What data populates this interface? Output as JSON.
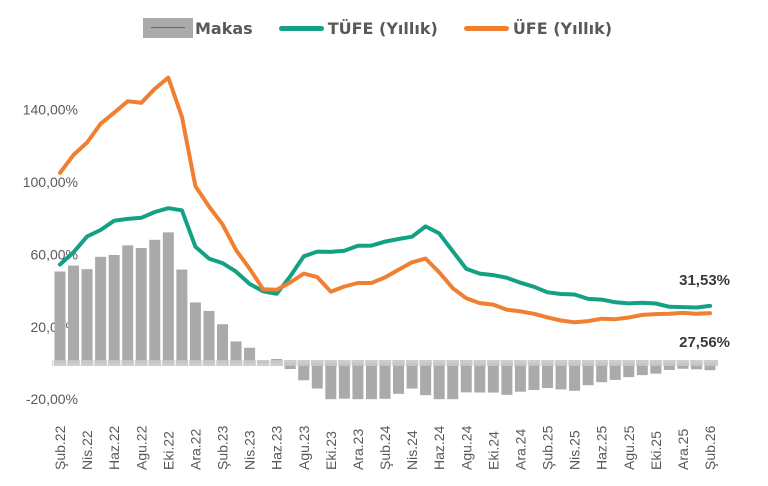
{
  "chart_data": {
    "type": "bar+line",
    "title": "",
    "xlabel": "",
    "ylabel": "",
    "period": {
      "start": "Şub.22",
      "end": "Şub.26",
      "frequency": "monthly"
    },
    "x_tick_labels": [
      "Şub.22",
      "Nis.22",
      "Haz.22",
      "Agu.22",
      "Eki.22",
      "Ara.22",
      "Şub.23",
      "Nis.23",
      "Haz.23",
      "Agu.23",
      "Eki.23",
      "Ara.23",
      "Şub.24",
      "Nis.24",
      "Haz.24",
      "Agu.24",
      "Eki.24",
      "Ara.24",
      "Şub.25",
      "Nis.25",
      "Haz.25",
      "Agu.25",
      "Eki.25",
      "Ara.25",
      "Şub.26"
    ],
    "y_tick_labels": [
      "140,00%",
      "100,00%",
      "60,00%",
      "20,00%",
      "-20,00%"
    ],
    "y_ticks": [
      140,
      100,
      60,
      20,
      -20
    ],
    "ylim": [
      -20,
      160
    ],
    "grid": false,
    "legend_position": "top",
    "series": [
      {
        "name": "Makas",
        "type": "bar",
        "color": "#aaaaaa",
        "values": [
          50.57,
          53.83,
          51.85,
          58.66,
          59.69,
          65.01,
          63.54,
          68.05,
          72.18,
          51.63,
          33.45,
          28.78,
          21.43,
          11.92,
          8.43,
          1.17,
          2.21,
          -3.33,
          -9.53,
          -14.09,
          -21.97,
          -19.73,
          -20.55,
          -20.66,
          -19.78,
          -17.03,
          -14.14,
          -17.77,
          -21.51,
          -20.41,
          -16.22,
          -16.29,
          -16.34,
          -17.62,
          -15.86,
          -14.92,
          -13.84,
          -14.6,
          -15.36,
          -12.28,
          -10.6,
          -9.33,
          -7.79,
          -6.7,
          -5.87,
          -3.84,
          -3.19,
          -3.48,
          -3.97
        ]
      },
      {
        "name": "TÜFE (Yıllık)",
        "type": "line",
        "color": "#14a085",
        "values": [
          54.44,
          61.14,
          69.97,
          73.5,
          78.62,
          79.6,
          80.21,
          83.45,
          85.51,
          84.39,
          64.27,
          57.68,
          55.18,
          50.51,
          43.68,
          39.59,
          38.21,
          47.83,
          58.94,
          61.53,
          61.36,
          61.98,
          64.77,
          64.86,
          67.07,
          68.5,
          69.8,
          75.45,
          71.6,
          61.78,
          51.97,
          49.38,
          48.58,
          47.09,
          44.38,
          42.12,
          39.05,
          38.1,
          37.86,
          35.41,
          35.05,
          33.52,
          32.95,
          33.29,
          32.87,
          31.07,
          30.89,
          30.65,
          31.53
        ],
        "end_label": "31,53%"
      },
      {
        "name": "ÜFE (Yıllık)",
        "type": "line",
        "color": "#f07f32",
        "values": [
          105.01,
          114.97,
          121.82,
          132.16,
          138.31,
          144.61,
          143.75,
          151.5,
          157.69,
          136.02,
          97.72,
          86.46,
          76.61,
          62.43,
          52.11,
          40.76,
          40.42,
          44.5,
          49.41,
          47.44,
          39.39,
          42.25,
          44.22,
          44.2,
          47.29,
          51.47,
          55.66,
          57.68,
          50.09,
          41.37,
          35.75,
          33.09,
          32.24,
          29.47,
          28.52,
          27.2,
          25.21,
          23.5,
          22.5,
          23.13,
          24.45,
          24.19,
          25.16,
          26.59,
          27.0,
          27.23,
          27.7,
          27.17,
          27.56
        ],
        "end_label": "27,56%"
      }
    ]
  }
}
